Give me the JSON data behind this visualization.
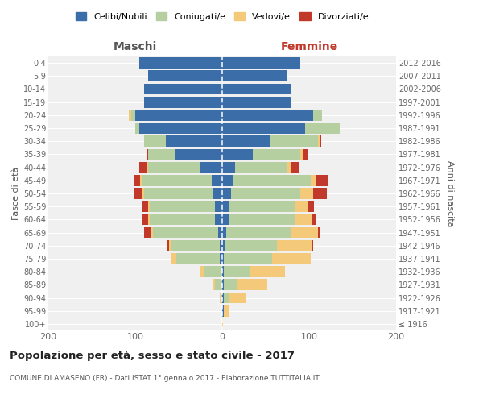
{
  "age_groups": [
    "100+",
    "95-99",
    "90-94",
    "85-89",
    "80-84",
    "75-79",
    "70-74",
    "65-69",
    "60-64",
    "55-59",
    "50-54",
    "45-49",
    "40-44",
    "35-39",
    "30-34",
    "25-29",
    "20-24",
    "15-19",
    "10-14",
    "5-9",
    "0-4"
  ],
  "birth_years": [
    "≤ 1916",
    "1917-1921",
    "1922-1926",
    "1927-1931",
    "1932-1936",
    "1937-1941",
    "1942-1946",
    "1947-1951",
    "1952-1956",
    "1957-1961",
    "1962-1966",
    "1967-1971",
    "1972-1976",
    "1977-1981",
    "1982-1986",
    "1987-1991",
    "1992-1996",
    "1997-2001",
    "2002-2006",
    "2007-2011",
    "2012-2016"
  ],
  "males": {
    "celibi": [
      0,
      0,
      0,
      0,
      0,
      3,
      3,
      5,
      8,
      8,
      10,
      12,
      25,
      55,
      65,
      95,
      100,
      90,
      90,
      85,
      95
    ],
    "coniugati": [
      0,
      0,
      2,
      8,
      20,
      50,
      55,
      75,
      75,
      75,
      80,
      80,
      60,
      30,
      25,
      5,
      5,
      0,
      0,
      0,
      0
    ],
    "vedovi": [
      0,
      0,
      1,
      2,
      5,
      5,
      3,
      2,
      2,
      2,
      2,
      2,
      2,
      0,
      0,
      0,
      2,
      0,
      0,
      0,
      0
    ],
    "divorziati": [
      0,
      0,
      0,
      0,
      0,
      0,
      2,
      8,
      8,
      8,
      10,
      8,
      8,
      2,
      0,
      0,
      0,
      0,
      0,
      0,
      0
    ]
  },
  "females": {
    "nubili": [
      0,
      2,
      2,
      2,
      2,
      2,
      3,
      5,
      8,
      8,
      10,
      12,
      15,
      35,
      55,
      95,
      105,
      80,
      80,
      75,
      90
    ],
    "coniugate": [
      0,
      0,
      5,
      15,
      30,
      55,
      60,
      75,
      75,
      75,
      80,
      90,
      60,
      55,
      55,
      40,
      10,
      0,
      0,
      0,
      0
    ],
    "vedove": [
      1,
      5,
      20,
      35,
      40,
      45,
      40,
      30,
      20,
      15,
      15,
      5,
      5,
      3,
      2,
      0,
      0,
      0,
      0,
      0,
      0
    ],
    "divorziate": [
      0,
      0,
      0,
      0,
      0,
      0,
      2,
      2,
      5,
      8,
      15,
      15,
      8,
      5,
      2,
      0,
      0,
      0,
      0,
      0,
      0
    ]
  },
  "colors": {
    "celibi": "#3b6ea8",
    "coniugati": "#b5cfa0",
    "vedovi": "#f5c97a",
    "divorziati": "#c0392b"
  },
  "legend_labels": [
    "Celibi/Nubili",
    "Coniugati/e",
    "Vedovi/e",
    "Divorziati/e"
  ],
  "title": "Popolazione per età, sesso e stato civile - 2017",
  "subtitle": "COMUNE DI AMASENO (FR) - Dati ISTAT 1° gennaio 2017 - Elaborazione TUTTITALIA.IT",
  "xlabel_left": "Maschi",
  "xlabel_right": "Femmine",
  "ylabel_left": "Fasce di età",
  "ylabel_right": "Anni di nascita",
  "xlim": 200,
  "background_color": "#ffffff",
  "plot_bg_color": "#f0f0f0"
}
